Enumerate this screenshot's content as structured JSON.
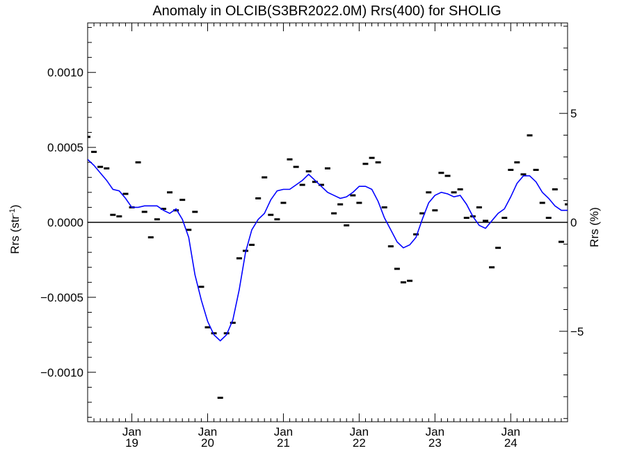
{
  "chart_data": {
    "type": "line",
    "title": "Anomaly in OLCIB(S3BR2022.0M) Rrs(400) for SHOLIG",
    "ylabel_left": {
      "main": "Rrs (str",
      "sup": "-1",
      "close": ")"
    },
    "ylabel_right": "Rrs (%)",
    "x_range": [
      2018.4167,
      2024.75
    ],
    "ylim": [
      -0.00133,
      0.00133
    ],
    "y2lim": [
      -9.15,
      9.15
    ],
    "x_ticks": [
      {
        "month": "Jan",
        "year": "19",
        "x": 2019.0
      },
      {
        "month": "Jan",
        "year": "20",
        "x": 2020.0
      },
      {
        "month": "Jan",
        "year": "21",
        "x": 2021.0
      },
      {
        "month": "Jan",
        "year": "22",
        "x": 2022.0
      },
      {
        "month": "Jan",
        "year": "23",
        "x": 2023.0
      },
      {
        "month": "Jan",
        "year": "24",
        "x": 2024.0
      }
    ],
    "y_ticks_left": [
      {
        "value": 0.001,
        "label": "0.0010"
      },
      {
        "value": 0.0005,
        "label": "0.0005"
      },
      {
        "value": 0.0,
        "label": "0.0000"
      },
      {
        "value": -0.0005,
        "label": "−0.0005"
      },
      {
        "value": -0.001,
        "label": "−0.0010"
      }
    ],
    "y_ticks_right": [
      {
        "value": 5,
        "label": "5"
      },
      {
        "value": 0,
        "label": "0"
      },
      {
        "value": -5,
        "label": "−5"
      }
    ],
    "zero_line": true,
    "series": [
      {
        "kind": "markers",
        "color": "#000000",
        "points": [
          {
            "x": 2018.417,
            "y": 0.00057
          },
          {
            "x": 2018.5,
            "y": 0.00047
          },
          {
            "x": 2018.583,
            "y": 0.00037
          },
          {
            "x": 2018.667,
            "y": 0.00036
          },
          {
            "x": 2018.75,
            "y": 5e-05
          },
          {
            "x": 2018.833,
            "y": 4e-05
          },
          {
            "x": 2018.917,
            "y": 0.00019
          },
          {
            "x": 2019.0,
            "y": 0.0001
          },
          {
            "x": 2019.083,
            "y": 0.0004
          },
          {
            "x": 2019.167,
            "y": 7e-05
          },
          {
            "x": 2019.25,
            "y": -0.0001
          },
          {
            "x": 2019.333,
            "y": 2e-05
          },
          {
            "x": 2019.417,
            "y": 9e-05
          },
          {
            "x": 2019.5,
            "y": 0.0002
          },
          {
            "x": 2019.583,
            "y": 8e-05
          },
          {
            "x": 2019.667,
            "y": 0.00015
          },
          {
            "x": 2019.75,
            "y": -5e-05
          },
          {
            "x": 2019.833,
            "y": 7e-05
          },
          {
            "x": 2019.917,
            "y": -0.00043
          },
          {
            "x": 2020.0,
            "y": -0.0007
          },
          {
            "x": 2020.083,
            "y": -0.00074
          },
          {
            "x": 2020.167,
            "y": -0.00117
          },
          {
            "x": 2020.25,
            "y": -0.00074
          },
          {
            "x": 2020.333,
            "y": -0.00067
          },
          {
            "x": 2020.417,
            "y": -0.00024
          },
          {
            "x": 2020.5,
            "y": -0.00019
          },
          {
            "x": 2020.583,
            "y": -0.00015
          },
          {
            "x": 2020.667,
            "y": 0.00016
          },
          {
            "x": 2020.75,
            "y": 0.0003
          },
          {
            "x": 2020.833,
            "y": 5e-05
          },
          {
            "x": 2020.917,
            "y": 2e-05
          },
          {
            "x": 2021.0,
            "y": 0.00013
          },
          {
            "x": 2021.083,
            "y": 0.00042
          },
          {
            "x": 2021.167,
            "y": 0.00037
          },
          {
            "x": 2021.25,
            "y": 0.00025
          },
          {
            "x": 2021.333,
            "y": 0.00034
          },
          {
            "x": 2021.417,
            "y": 0.00027
          },
          {
            "x": 2021.5,
            "y": 0.00025
          },
          {
            "x": 2021.583,
            "y": 0.00036
          },
          {
            "x": 2021.667,
            "y": 6e-05
          },
          {
            "x": 2021.75,
            "y": 0.00012
          },
          {
            "x": 2021.833,
            "y": -2e-05
          },
          {
            "x": 2021.917,
            "y": 0.00018
          },
          {
            "x": 2022.0,
            "y": 0.00013
          },
          {
            "x": 2022.083,
            "y": 0.00039
          },
          {
            "x": 2022.167,
            "y": 0.00043
          },
          {
            "x": 2022.25,
            "y": 0.0004
          },
          {
            "x": 2022.333,
            "y": 0.0001
          },
          {
            "x": 2022.417,
            "y": -0.00016
          },
          {
            "x": 2022.5,
            "y": -0.00031
          },
          {
            "x": 2022.583,
            "y": -0.0004
          },
          {
            "x": 2022.667,
            "y": -0.00039
          },
          {
            "x": 2022.75,
            "y": -8e-05
          },
          {
            "x": 2022.833,
            "y": 6e-05
          },
          {
            "x": 2022.917,
            "y": 0.0002
          },
          {
            "x": 2023.0,
            "y": 8e-05
          },
          {
            "x": 2023.083,
            "y": 0.00033
          },
          {
            "x": 2023.167,
            "y": 0.00031
          },
          {
            "x": 2023.25,
            "y": 0.0002
          },
          {
            "x": 2023.333,
            "y": 0.00022
          },
          {
            "x": 2023.417,
            "y": 3e-05
          },
          {
            "x": 2023.5,
            "y": 4e-05
          },
          {
            "x": 2023.583,
            "y": 0.0001
          },
          {
            "x": 2023.667,
            "y": 1e-05
          },
          {
            "x": 2023.75,
            "y": -0.0003
          },
          {
            "x": 2023.833,
            "y": -0.00017
          },
          {
            "x": 2023.917,
            "y": 3e-05
          },
          {
            "x": 2024.0,
            "y": 0.00035
          },
          {
            "x": 2024.083,
            "y": 0.0004
          },
          {
            "x": 2024.167,
            "y": 0.00032
          },
          {
            "x": 2024.25,
            "y": 0.00058
          },
          {
            "x": 2024.333,
            "y": 0.00035
          },
          {
            "x": 2024.417,
            "y": 0.00013
          },
          {
            "x": 2024.5,
            "y": 3e-05
          },
          {
            "x": 2024.583,
            "y": 0.00022
          },
          {
            "x": 2024.667,
            "y": -0.00013
          },
          {
            "x": 2024.75,
            "y": 0.00012
          }
        ]
      },
      {
        "kind": "line",
        "color": "#0000ff",
        "points": [
          {
            "x": 2018.417,
            "y": 0.00042
          },
          {
            "x": 2018.5,
            "y": 0.00038
          },
          {
            "x": 2018.583,
            "y": 0.00033
          },
          {
            "x": 2018.667,
            "y": 0.00028
          },
          {
            "x": 2018.75,
            "y": 0.00022
          },
          {
            "x": 2018.833,
            "y": 0.00021
          },
          {
            "x": 2018.917,
            "y": 0.00016
          },
          {
            "x": 2019.0,
            "y": 0.0001
          },
          {
            "x": 2019.083,
            "y": 0.0001
          },
          {
            "x": 2019.167,
            "y": 0.00011
          },
          {
            "x": 2019.25,
            "y": 0.00011
          },
          {
            "x": 2019.333,
            "y": 0.00011
          },
          {
            "x": 2019.417,
            "y": 8e-05
          },
          {
            "x": 2019.5,
            "y": 6e-05
          },
          {
            "x": 2019.583,
            "y": 9e-05
          },
          {
            "x": 2019.667,
            "y": 2e-05
          },
          {
            "x": 2019.75,
            "y": -0.0001
          },
          {
            "x": 2019.833,
            "y": -0.00035
          },
          {
            "x": 2019.917,
            "y": -0.00052
          },
          {
            "x": 2020.0,
            "y": -0.00066
          },
          {
            "x": 2020.083,
            "y": -0.00075
          },
          {
            "x": 2020.167,
            "y": -0.00079
          },
          {
            "x": 2020.25,
            "y": -0.00075
          },
          {
            "x": 2020.333,
            "y": -0.00065
          },
          {
            "x": 2020.417,
            "y": -0.00045
          },
          {
            "x": 2020.5,
            "y": -0.0002
          },
          {
            "x": 2020.583,
            "y": -5e-05
          },
          {
            "x": 2020.667,
            "y": 2e-05
          },
          {
            "x": 2020.75,
            "y": 6e-05
          },
          {
            "x": 2020.833,
            "y": 0.00015
          },
          {
            "x": 2020.917,
            "y": 0.00021
          },
          {
            "x": 2021.0,
            "y": 0.00022
          },
          {
            "x": 2021.083,
            "y": 0.00022
          },
          {
            "x": 2021.167,
            "y": 0.00025
          },
          {
            "x": 2021.25,
            "y": 0.00028
          },
          {
            "x": 2021.333,
            "y": 0.00032
          },
          {
            "x": 2021.417,
            "y": 0.00028
          },
          {
            "x": 2021.5,
            "y": 0.00024
          },
          {
            "x": 2021.583,
            "y": 0.0002
          },
          {
            "x": 2021.667,
            "y": 0.00018
          },
          {
            "x": 2021.75,
            "y": 0.00016
          },
          {
            "x": 2021.833,
            "y": 0.00017
          },
          {
            "x": 2021.917,
            "y": 0.0002
          },
          {
            "x": 2022.0,
            "y": 0.00024
          },
          {
            "x": 2022.083,
            "y": 0.00024
          },
          {
            "x": 2022.167,
            "y": 0.00022
          },
          {
            "x": 2022.25,
            "y": 0.00014
          },
          {
            "x": 2022.333,
            "y": 3e-05
          },
          {
            "x": 2022.417,
            "y": -5e-05
          },
          {
            "x": 2022.5,
            "y": -0.00013
          },
          {
            "x": 2022.583,
            "y": -0.00017
          },
          {
            "x": 2022.667,
            "y": -0.00015
          },
          {
            "x": 2022.75,
            "y": -0.0001
          },
          {
            "x": 2022.833,
            "y": 2e-05
          },
          {
            "x": 2022.917,
            "y": 0.00013
          },
          {
            "x": 2023.0,
            "y": 0.00018
          },
          {
            "x": 2023.083,
            "y": 0.0002
          },
          {
            "x": 2023.167,
            "y": 0.00019
          },
          {
            "x": 2023.25,
            "y": 0.00017
          },
          {
            "x": 2023.333,
            "y": 0.00018
          },
          {
            "x": 2023.417,
            "y": 0.00012
          },
          {
            "x": 2023.5,
            "y": 4e-05
          },
          {
            "x": 2023.583,
            "y": -2e-05
          },
          {
            "x": 2023.667,
            "y": -4e-05
          },
          {
            "x": 2023.75,
            "y": 1e-05
          },
          {
            "x": 2023.833,
            "y": 6e-05
          },
          {
            "x": 2023.917,
            "y": 9e-05
          },
          {
            "x": 2024.0,
            "y": 0.00017
          },
          {
            "x": 2024.083,
            "y": 0.00026
          },
          {
            "x": 2024.167,
            "y": 0.00031
          },
          {
            "x": 2024.25,
            "y": 0.00031
          },
          {
            "x": 2024.333,
            "y": 0.00027
          },
          {
            "x": 2024.417,
            "y": 0.0002
          },
          {
            "x": 2024.5,
            "y": 0.00016
          },
          {
            "x": 2024.583,
            "y": 0.00011
          },
          {
            "x": 2024.667,
            "y": 8e-05
          },
          {
            "x": 2024.75,
            "y": 8e-05
          },
          {
            "x": 2024.833,
            "y": 0.0001
          }
        ]
      }
    ]
  }
}
